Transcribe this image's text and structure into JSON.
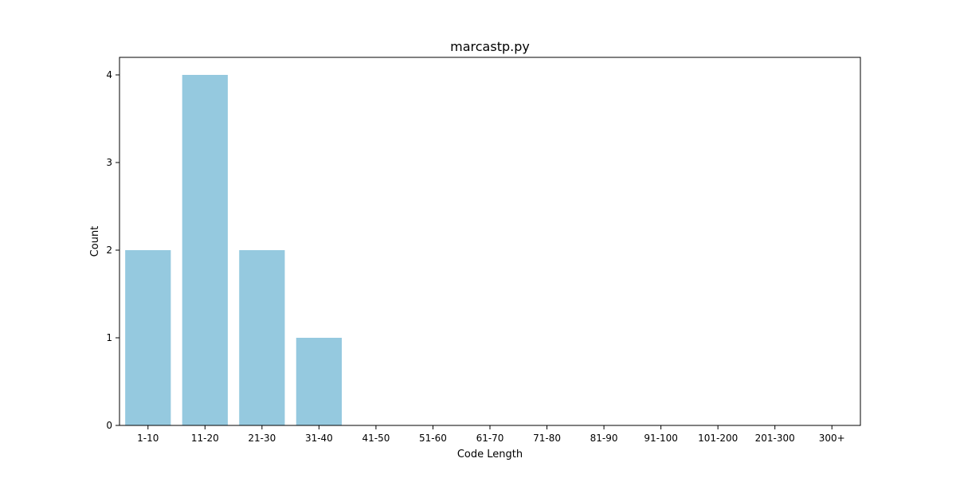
{
  "chart_data": {
    "type": "bar",
    "title": "marcastp.py",
    "xlabel": "Code Length",
    "ylabel": "Count",
    "categories": [
      "1-10",
      "11-20",
      "21-30",
      "31-40",
      "41-50",
      "51-60",
      "61-70",
      "71-80",
      "81-90",
      "91-100",
      "101-200",
      "201-300",
      "300+"
    ],
    "values": [
      2,
      4,
      2,
      1,
      0,
      0,
      0,
      0,
      0,
      0,
      0,
      0,
      0
    ],
    "ylim": [
      0,
      4.2
    ],
    "yticks": [
      0,
      1,
      2,
      3,
      4
    ],
    "grid": false,
    "legend": "none",
    "bar_color": "#95C9DF",
    "axis_color": "#000000"
  }
}
